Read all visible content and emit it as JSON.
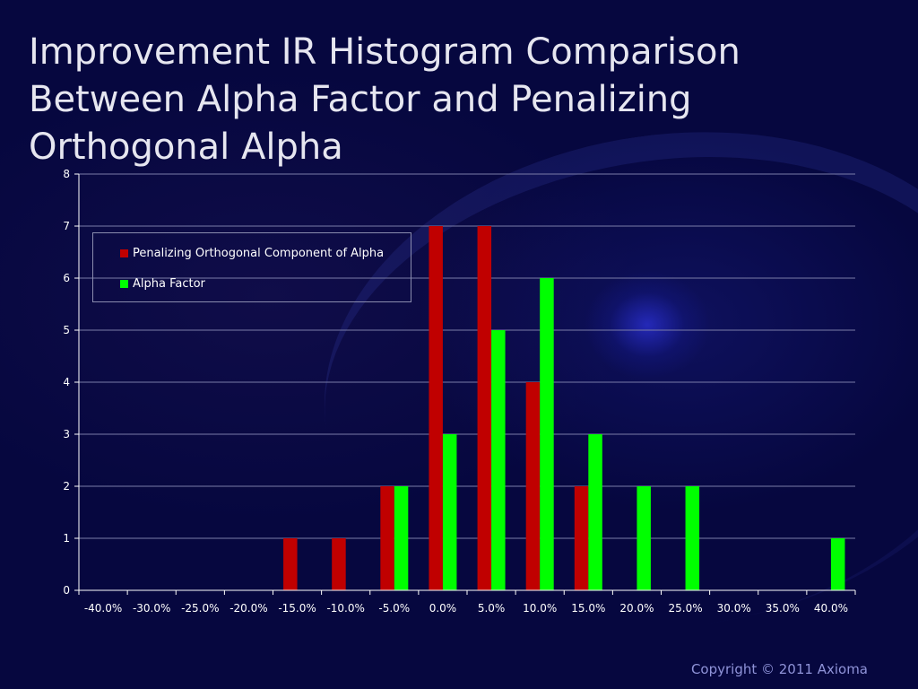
{
  "title": "Improvement IR Histogram Comparison\nBetween Alpha Factor and Penalizing\nOrthogonal Alpha",
  "copyright": "Copyright © 2011 Axioma",
  "colors": {
    "background": "#06073f",
    "penalizing": "#c00000",
    "alpha": "#00ff00",
    "gridline": "#7a7ca8",
    "axis_text": "#ffffff"
  },
  "chart_data": {
    "type": "bar",
    "title": "",
    "xlabel": "",
    "ylabel": "",
    "categories": [
      "-40.0%",
      "-30.0%",
      "-25.0%",
      "-20.0%",
      "-15.0%",
      "-10.0%",
      "-5.0%",
      "0.0%",
      "5.0%",
      "10.0%",
      "15.0%",
      "20.0%",
      "25.0%",
      "30.0%",
      "35.0%",
      "40.0%"
    ],
    "series": [
      {
        "name": "Penalizing Orthogonal Component of Alpha",
        "color": "#c00000",
        "values": [
          0,
          0,
          0,
          0,
          1,
          1,
          2,
          7,
          7,
          4,
          2,
          0,
          0,
          0,
          0,
          0
        ]
      },
      {
        "name": "Alpha Factor",
        "color": "#00ff00",
        "values": [
          0,
          0,
          0,
          0,
          0,
          0,
          2,
          3,
          5,
          6,
          3,
          2,
          2,
          0,
          0,
          1
        ]
      }
    ],
    "ylim": [
      0,
      8
    ],
    "yticks": [
      0,
      1,
      2,
      3,
      4,
      5,
      6,
      7,
      8
    ],
    "grid": true,
    "legend_position": "top-left"
  }
}
